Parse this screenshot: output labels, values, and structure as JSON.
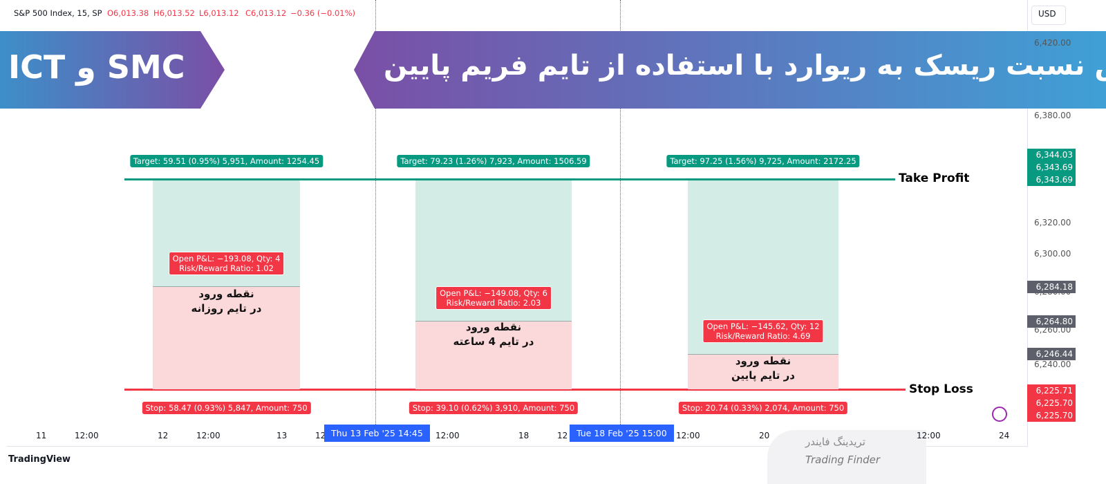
{
  "legend": {
    "symbol": "S&P 500 Index, 15, SP",
    "open": "O6,013.38",
    "high": "H6,013.52",
    "low": "L6,013.12",
    "close": "C6,013.12",
    "change": "−0.36 (−0.01%)"
  },
  "currency": "USD",
  "banner": {
    "left": "ICT و SMC",
    "right": "افزایش نسبت ریسک به ریوارد با استفاده از تایم فریم پایین"
  },
  "price_axis": {
    "ticks": [
      "6,420.00",
      "6,380.00",
      "6,320.00",
      "6,300.00",
      "6,280.00",
      "6,260.00",
      "6,240.00"
    ],
    "badges": [
      "6,344.03",
      "6,343.69",
      "6,343.69",
      "6,284.18",
      "6,264.80",
      "6,246.44",
      "6,225.71",
      "6,225.70",
      "6,225.70"
    ]
  },
  "time_axis": {
    "ticks": [
      "11",
      "12:00",
      "12",
      "12:00",
      "13",
      "12",
      "12:00",
      "18",
      "12",
      "12:00",
      "20",
      "12:00",
      "24"
    ],
    "cursors": [
      "Thu 13 Feb '25   14:45",
      "Tue 18 Feb '25   15:00"
    ]
  },
  "lines": {
    "take_profit": "Take Profit",
    "stop_loss": "Stop Loss"
  },
  "positions": [
    {
      "target": "Target: 59.51 (0.95%) 5,951, Amount: 1254.45",
      "pnl": [
        "Open P&L: −193.08, Qty: 4",
        "Risk/Reward Ratio: 1.02"
      ],
      "entry": [
        "نقطه ورود",
        "در تایم روزانه"
      ],
      "stop": "Stop: 58.47 (0.93%) 5,847, Amount: 750"
    },
    {
      "target": "Target: 79.23 (1.26%) 7,923, Amount: 1506.59",
      "pnl": [
        "Open P&L: −149.08, Qty: 6",
        "Risk/Reward Ratio: 2.03"
      ],
      "entry": [
        "نقطه ورود",
        "در تایم 4 ساعته"
      ],
      "stop": "Stop: 39.10 (0.62%) 3,910, Amount: 750"
    },
    {
      "target": "Target: 97.25 (1.56%) 9,725, Amount: 2172.25",
      "pnl": [
        "Open P&L: −145.62, Qty: 12",
        "Risk/Reward Ratio: 4.69"
      ],
      "entry": [
        "نقطه ورود",
        "در تایم پایین"
      ],
      "stop": "Stop: 20.74 (0.33%) 2,074, Amount: 750"
    }
  ],
  "brand": "TradingView",
  "watermark": {
    "fa": "تریدینگ فایندر",
    "en": "Trading Finder"
  }
}
